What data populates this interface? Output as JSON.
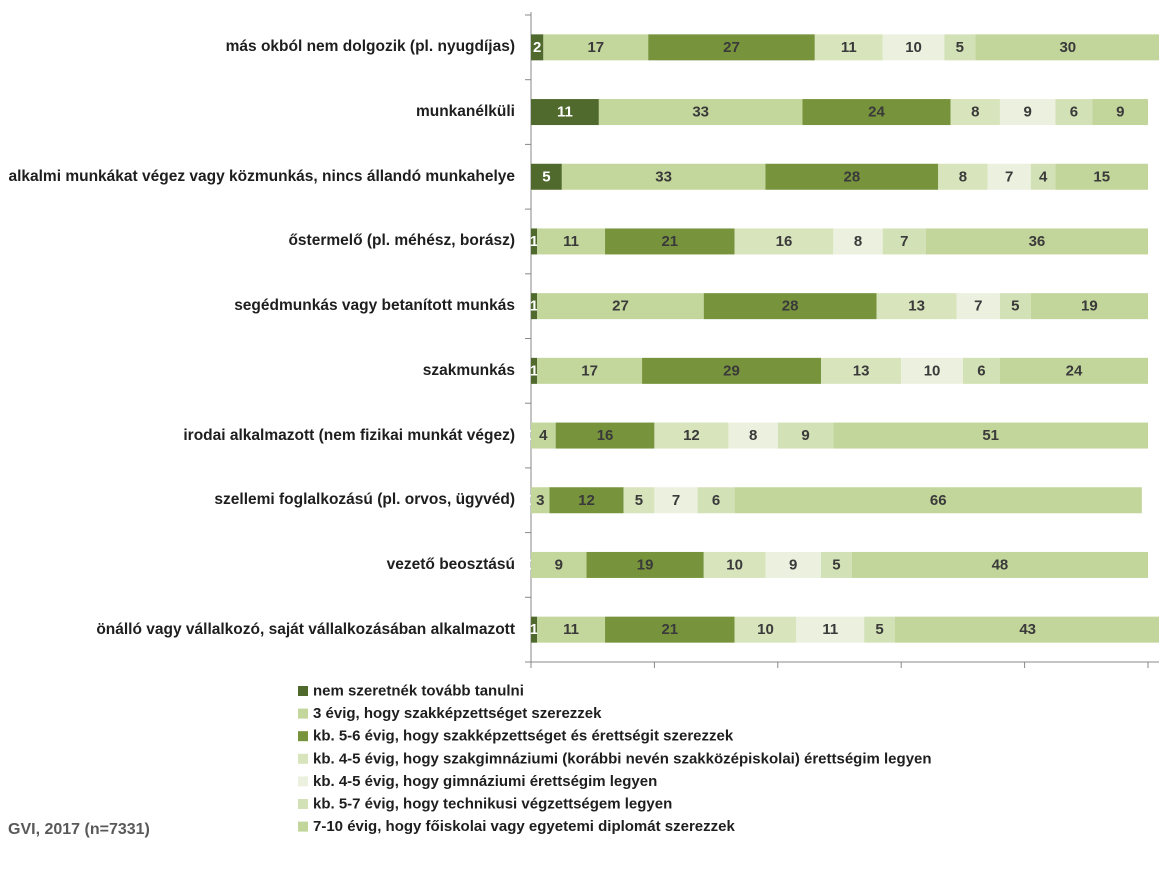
{
  "chart_data": {
    "type": "bar",
    "orientation": "horizontal",
    "stacked": true,
    "categories": [
      "más okból nem dolgozik (pl. nyugdíjas)",
      "munkanélküli",
      "alkalmi munkákat végez vagy  közmunkás, nincs állandó munkahelye",
      "őstermelő (pl. méhész, borász)",
      "segédmunkás vagy betanított munkás",
      "szakmunkás",
      "irodai alkalmazott (nem fizikai munkát végez)",
      "szellemi foglalkozású (pl. orvos, ügyvéd)",
      "vezető beosztású",
      "önálló vagy vállalkozó, saját vállalkozásában alkalmazott"
    ],
    "series": [
      {
        "name": "nem szeretnék tovább tanulni",
        "color": "#4f6a2c",
        "label_color": "#ffffff",
        "values": [
          2,
          11,
          5,
          1,
          1,
          1,
          0,
          0,
          0,
          1
        ]
      },
      {
        "name": "3 évig, hogy szakképzettséget szerezzek",
        "color": "#c3d69b",
        "label_color": "#3a3a3a",
        "values": [
          17,
          33,
          33,
          11,
          27,
          17,
          4,
          3,
          9,
          11
        ]
      },
      {
        "name": "kb. 5-6 évig, hogy szakképzettséget és érettségit szerezzek",
        "color": "#77933c",
        "label_color": "#3a3a3a",
        "values": [
          27,
          24,
          28,
          21,
          28,
          29,
          16,
          12,
          19,
          21
        ]
      },
      {
        "name": "kb. 4-5 évig, hogy szakgimnáziumi (korábbi nevén szakközépiskolai) érettségim legyen",
        "color": "#d8e4bc",
        "label_color": "#3a3a3a",
        "values": [
          11,
          8,
          8,
          16,
          13,
          13,
          12,
          5,
          10,
          10
        ]
      },
      {
        "name": "kb. 4-5 évig, hogy gimnáziumi érettségim legyen",
        "color": "#ebf1de",
        "label_color": "#3a3a3a",
        "values": [
          10,
          9,
          7,
          8,
          7,
          10,
          8,
          7,
          9,
          11
        ]
      },
      {
        "name": "kb. 5-7 évig, hogy technikusi végzettségem legyen",
        "color": "#d3e1b6",
        "label_color": "#3a3a3a",
        "values": [
          5,
          6,
          4,
          7,
          5,
          6,
          9,
          6,
          5,
          5
        ]
      },
      {
        "name": "7-10 évig, hogy főiskolai vagy egyetemi diplomát szerezzek",
        "color": "#c2d59a",
        "label_color": "#3a3a3a",
        "values": [
          30,
          9,
          15,
          36,
          19,
          24,
          51,
          66,
          48,
          43
        ]
      }
    ],
    "xlim": [
      0,
      100
    ],
    "xticks": [
      0,
      20,
      40,
      60,
      80,
      100
    ],
    "source": "GVI, 2017 (n=7331)"
  }
}
